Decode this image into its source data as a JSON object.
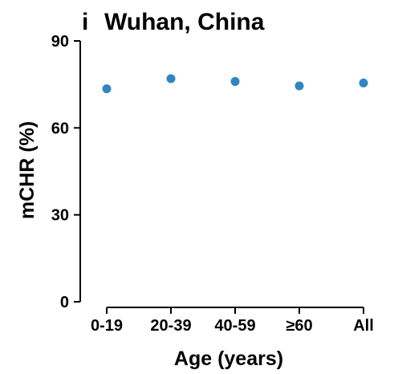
{
  "chart_data": {
    "type": "scatter",
    "panel_label": "i",
    "title": "Wuhan, China",
    "xlabel": "Age (years)",
    "ylabel": "mCHR (%)",
    "categories": [
      "0-19",
      "20-39",
      "40-59",
      "≥60",
      "All"
    ],
    "values": [
      73.5,
      77.0,
      76.0,
      74.5,
      75.5
    ],
    "ylim": [
      0,
      90
    ],
    "yticks": [
      0,
      30,
      60,
      90
    ],
    "grid": false,
    "legend": "none",
    "point_color": "#2e86c1"
  }
}
